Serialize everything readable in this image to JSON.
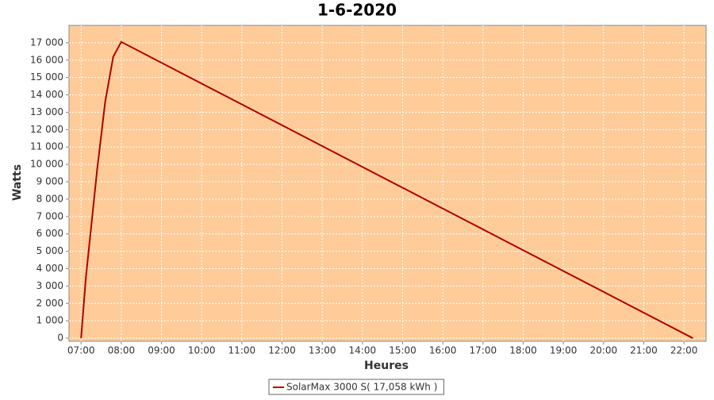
{
  "chart_data": {
    "type": "line",
    "title": "1-6-2020",
    "x_label": "Heures",
    "y_label": "Watts",
    "x": [
      7.0,
      7.12,
      7.4,
      7.6,
      7.8,
      8.0,
      22.22
    ],
    "series": [
      {
        "name": "SolarMax 3000 S( 17,058 kWh )",
        "color": "#b00000",
        "values": [
          0,
          3500,
          9700,
          13600,
          16200,
          17050,
          0
        ]
      }
    ],
    "xlim": [
      6.7,
      22.55
    ],
    "xticks": [
      {
        "value": 7,
        "label": "07:00"
      },
      {
        "value": 8,
        "label": "08:00"
      },
      {
        "value": 9,
        "label": "09:00"
      },
      {
        "value": 10,
        "label": "10:00"
      },
      {
        "value": 11,
        "label": "11:00"
      },
      {
        "value": 12,
        "label": "12:00"
      },
      {
        "value": 13,
        "label": "13:00"
      },
      {
        "value": 14,
        "label": "14:00"
      },
      {
        "value": 15,
        "label": "15:00"
      },
      {
        "value": 16,
        "label": "16:00"
      },
      {
        "value": 17,
        "label": "17:00"
      },
      {
        "value": 18,
        "label": "18:00"
      },
      {
        "value": 19,
        "label": "19:00"
      },
      {
        "value": 20,
        "label": "20:00"
      },
      {
        "value": 21,
        "label": "21:00"
      },
      {
        "value": 22,
        "label": "22:00"
      }
    ],
    "ylim": [
      -180,
      18000
    ],
    "yticks": [
      0,
      {
        "value": 1000,
        "label": "1 000"
      },
      {
        "value": 2000,
        "label": "2 000"
      },
      {
        "value": 3000,
        "label": "3 000"
      },
      {
        "value": 4000,
        "label": "4 000"
      },
      {
        "value": 5000,
        "label": "5 000"
      },
      {
        "value": 6000,
        "label": "6 000"
      },
      {
        "value": 7000,
        "label": "7 000"
      },
      {
        "value": 8000,
        "label": "8 000"
      },
      {
        "value": 9000,
        "label": "9 000"
      },
      {
        "value": 10000,
        "label": "10 000"
      },
      {
        "value": 11000,
        "label": "11 000"
      },
      {
        "value": 12000,
        "label": "12 000"
      },
      {
        "value": 13000,
        "label": "13 000"
      },
      {
        "value": 14000,
        "label": "14 000"
      },
      {
        "value": 15000,
        "label": "15 000"
      },
      {
        "value": 16000,
        "label": "16 000"
      },
      {
        "value": 17000,
        "label": "17 000"
      }
    ],
    "grid": true,
    "plot_background": "#ffcc99",
    "legend": "bottom"
  }
}
